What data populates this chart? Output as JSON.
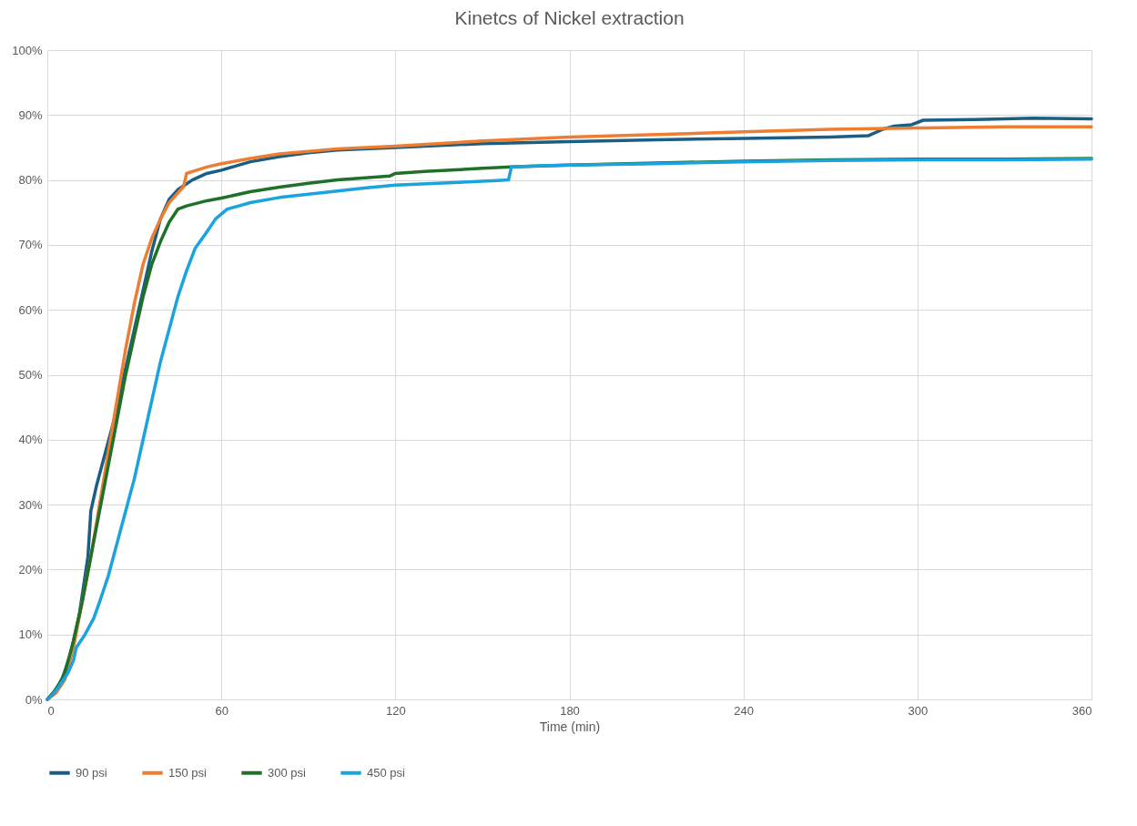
{
  "chart_data": {
    "type": "line",
    "title": "Kinetcs of Nickel extraction",
    "xlabel": "Time (min)",
    "xlim": [
      0,
      360
    ],
    "xticks": [
      0,
      60,
      120,
      180,
      240,
      300,
      360
    ],
    "ylim": [
      0,
      100
    ],
    "yticks": [
      {
        "value": 0,
        "label": "0%"
      },
      {
        "value": 10,
        "label": "10%"
      },
      {
        "value": 20,
        "label": "20%"
      },
      {
        "value": 30,
        "label": "30%"
      },
      {
        "value": 40,
        "label": "40%"
      },
      {
        "value": 50,
        "label": "50%"
      },
      {
        "value": 60,
        "label": "60%"
      },
      {
        "value": 70,
        "label": "70%"
      },
      {
        "value": 80,
        "label": "80%"
      },
      {
        "value": 90,
        "label": "90%"
      },
      {
        "value": 100,
        "label": "100%"
      }
    ],
    "grid": true,
    "legend": "bottom",
    "line_style": "solid",
    "series": [
      {
        "name": "90 psi",
        "color": "#1b5e84",
        "x": [
          0,
          2,
          5,
          8,
          11,
          14,
          15,
          17,
          20,
          23,
          26,
          30,
          33,
          36,
          39,
          42,
          45,
          50,
          55,
          60,
          70,
          80,
          90,
          100,
          120,
          150,
          180,
          210,
          240,
          270,
          283,
          288,
          292,
          298,
          302,
          320,
          340,
          360
        ],
        "values": [
          0,
          1,
          3,
          7,
          13,
          22,
          29,
          33,
          38,
          43,
          49,
          57,
          63,
          69,
          74,
          77,
          78.5,
          80,
          81,
          81.5,
          82.8,
          83.6,
          84.2,
          84.6,
          85,
          85.6,
          85.9,
          86.2,
          86.4,
          86.6,
          86.8,
          87.8,
          88.3,
          88.5,
          89.2,
          89.3,
          89.5,
          89.4
        ]
      },
      {
        "name": "150 psi",
        "color": "#ed7d31",
        "x": [
          0,
          3,
          6,
          9,
          12,
          15,
          18,
          21,
          24,
          27,
          30,
          33,
          36,
          39,
          42,
          45,
          47,
          48,
          50,
          55,
          60,
          70,
          80,
          90,
          100,
          120,
          150,
          180,
          210,
          240,
          270,
          300,
          330,
          360
        ],
        "values": [
          0,
          1,
          3,
          8,
          15,
          22,
          30,
          38,
          46,
          54,
          61,
          67,
          71,
          74,
          76.5,
          78,
          79,
          81,
          81.3,
          82,
          82.5,
          83.3,
          84,
          84.4,
          84.8,
          85.2,
          86,
          86.6,
          87,
          87.4,
          87.8,
          88,
          88.2,
          88.2
        ]
      },
      {
        "name": "300 psi",
        "color": "#1e7127",
        "x": [
          0,
          3,
          6,
          9,
          12,
          15,
          18,
          21,
          24,
          27,
          30,
          33,
          36,
          39,
          42,
          45,
          48,
          55,
          60,
          70,
          80,
          90,
          100,
          115,
          118,
          120,
          130,
          150,
          160,
          180,
          210,
          240,
          270,
          300,
          330,
          360
        ],
        "values": [
          0,
          1.5,
          4,
          9,
          15,
          22,
          29,
          36,
          43,
          50,
          56,
          62,
          67,
          70.5,
          73.5,
          75.5,
          76,
          76.8,
          77.2,
          78.2,
          78.9,
          79.5,
          80,
          80.5,
          80.6,
          81,
          81.3,
          81.8,
          82,
          82.3,
          82.6,
          82.9,
          83.1,
          83.2,
          83.2,
          83.3
        ]
      },
      {
        "name": "450 psi",
        "color": "#1aa3dc",
        "x": [
          0,
          2,
          4,
          7,
          9,
          10,
          13,
          16,
          18,
          21,
          24,
          27,
          30,
          33,
          36,
          39,
          42,
          45,
          48,
          51,
          55,
          58,
          62,
          66,
          70,
          80,
          90,
          100,
          110,
          120,
          140,
          155,
          159,
          160,
          170,
          180,
          210,
          240,
          270,
          300,
          330,
          360
        ],
        "values": [
          0,
          0.8,
          2,
          4,
          6,
          8,
          10,
          12.5,
          15,
          19,
          24,
          29,
          34,
          40,
          46,
          52,
          57,
          62,
          66,
          69.5,
          72,
          74,
          75.5,
          76,
          76.5,
          77.3,
          77.8,
          78.3,
          78.8,
          79.2,
          79.6,
          79.9,
          80,
          82,
          82.2,
          82.3,
          82.5,
          82.8,
          83,
          83.1,
          83.1,
          83.2
        ]
      }
    ]
  }
}
